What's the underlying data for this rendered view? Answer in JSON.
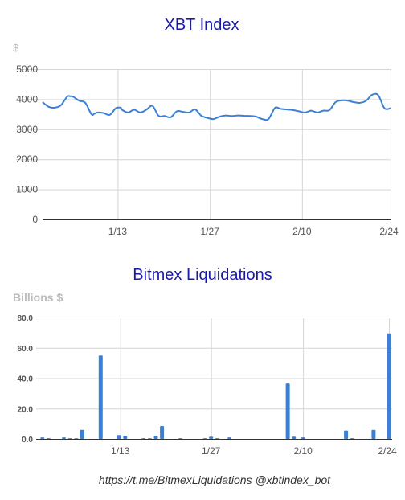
{
  "footer": "https://t.me/BitmexLiquidations @xbtindex_bot",
  "colors": {
    "title": "#1a1aa8",
    "series": "#3a80d6"
  },
  "chart_data": [
    {
      "type": "line",
      "title": "XBT Index",
      "ylabel": "$",
      "ylim": [
        0,
        5000
      ],
      "yticks": [
        "0",
        "1000",
        "2000",
        "3000",
        "4000",
        "5000"
      ],
      "xlim": [
        0,
        57
      ],
      "xticks": [
        {
          "x": 12.3,
          "label": "1/13"
        },
        {
          "x": 27.4,
          "label": "1/27"
        },
        {
          "x": 42.5,
          "label": "2/10"
        },
        {
          "x": 57,
          "label": "2/24"
        }
      ],
      "series": [
        {
          "x": [
            0,
            1,
            2,
            3,
            4,
            4.5,
            5,
            6,
            7,
            8,
            8.5,
            9,
            10,
            11,
            12,
            12.8,
            13,
            14,
            15,
            16,
            17,
            18,
            19,
            20,
            21,
            22,
            23,
            24,
            25,
            26,
            27,
            28,
            29,
            30,
            31,
            32,
            33,
            34,
            35,
            36,
            37,
            38,
            38.5,
            39,
            40,
            41,
            42,
            43,
            44,
            45,
            46,
            47,
            48,
            49,
            50,
            51,
            52,
            53,
            54,
            55,
            56,
            57
          ],
          "y": [
            3900,
            3750,
            3720,
            3800,
            4080,
            4100,
            4080,
            3950,
            3880,
            3500,
            3520,
            3560,
            3540,
            3480,
            3700,
            3720,
            3650,
            3560,
            3650,
            3560,
            3650,
            3780,
            3450,
            3440,
            3400,
            3600,
            3580,
            3560,
            3660,
            3450,
            3380,
            3340,
            3420,
            3460,
            3440,
            3460,
            3450,
            3440,
            3420,
            3340,
            3340,
            3700,
            3720,
            3680,
            3660,
            3640,
            3600,
            3560,
            3620,
            3560,
            3620,
            3640,
            3900,
            3960,
            3950,
            3900,
            3880,
            3950,
            4150,
            4130,
            3700,
            3700
          ]
        }
      ]
    },
    {
      "type": "bar",
      "title": "Bitmex Liquidations",
      "ylabel": "Billions $",
      "ylim": [
        0,
        80
      ],
      "yticks": [
        "0.0",
        "20.0",
        "40.0",
        "60.0",
        "80.0"
      ],
      "xlim": [
        0,
        57
      ],
      "xticks": [
        {
          "x": 13.2,
          "label": "1/13"
        },
        {
          "x": 28,
          "label": "1/27"
        },
        {
          "x": 43,
          "label": "2/10"
        },
        {
          "x": 57,
          "label": "2/24"
        }
      ],
      "series": [
        {
          "x": [
            0.5,
            1.5,
            4,
            5,
            6,
            7,
            10,
            13,
            14,
            17,
            18,
            19,
            20,
            23,
            27,
            28,
            29,
            31,
            40.5,
            41.5,
            43,
            50,
            51,
            54.5,
            57
          ],
          "values": [
            1.0,
            0.5,
            1.0,
            0.5,
            0.5,
            6.0,
            55.0,
            2.5,
            2.0,
            0.5,
            0.5,
            2.0,
            8.5,
            0.5,
            0.5,
            1.5,
            0.5,
            1.0,
            36.5,
            1.5,
            1.0,
            5.5,
            0.5,
            6.0,
            69.5
          ]
        }
      ]
    }
  ]
}
